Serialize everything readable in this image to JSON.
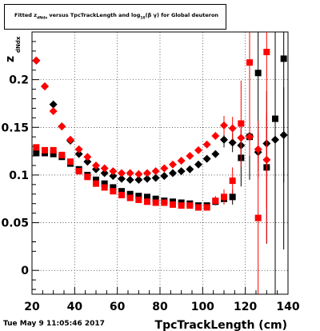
{
  "header": {
    "title": "Fitted  z_dNdx versus TpcTrackLength and log_10(β γ) for Global deuteron",
    "title_parts": {
      "pre": "Fitted  z",
      "sub1": "dNdx",
      "mid": " versus TpcTrackLength and log",
      "sub2": "10",
      "post": "(β γ) for Global deuteron"
    }
  },
  "timestamp": "Tue May  9 11:05:46 2017",
  "chart_data": {
    "type": "scatter",
    "xlabel": "TpcTrackLength (cm)",
    "ylabel": "z",
    "ylabel_sub": "dNdx",
    "xlim": [
      20,
      140
    ],
    "ylim": [
      -0.025,
      0.25
    ],
    "xticks": [
      20,
      40,
      60,
      80,
      100,
      120,
      140
    ],
    "xtick_labels": [
      "20",
      "40",
      "60",
      "80",
      "100",
      "120",
      "140"
    ],
    "yticks": [
      0,
      0.05,
      0.1,
      0.15,
      0.2
    ],
    "ytick_labels": [
      "0",
      "0.05",
      "0.1",
      "0.15",
      "0.2"
    ],
    "grid": true,
    "colors": {
      "black": "#000000",
      "red": "#ff0000"
    },
    "series": [
      {
        "color": "#000000",
        "marker": "square",
        "points": [
          {
            "x": 22,
            "y": 0.123
          },
          {
            "x": 26,
            "y": 0.123
          },
          {
            "x": 30,
            "y": 0.122
          },
          {
            "x": 34,
            "y": 0.119
          },
          {
            "x": 38,
            "y": 0.112
          },
          {
            "x": 42,
            "y": 0.106
          },
          {
            "x": 46,
            "y": 0.1
          },
          {
            "x": 50,
            "y": 0.095
          },
          {
            "x": 54,
            "y": 0.091
          },
          {
            "x": 58,
            "y": 0.087
          },
          {
            "x": 62,
            "y": 0.083
          },
          {
            "x": 66,
            "y": 0.08
          },
          {
            "x": 70,
            "y": 0.078
          },
          {
            "x": 74,
            "y": 0.077
          },
          {
            "x": 78,
            "y": 0.075
          },
          {
            "x": 82,
            "y": 0.073
          },
          {
            "x": 86,
            "y": 0.072
          },
          {
            "x": 90,
            "y": 0.071
          },
          {
            "x": 94,
            "y": 0.07
          },
          {
            "x": 98,
            "y": 0.068
          },
          {
            "x": 102,
            "y": 0.068
          },
          {
            "x": 106,
            "y": 0.072
          },
          {
            "x": 110,
            "y": 0.075,
            "err": 0.006
          },
          {
            "x": 114,
            "y": 0.077,
            "err": 0.008
          },
          {
            "x": 118,
            "y": 0.118,
            "err": 0.03
          },
          {
            "x": 122,
            "y": 0.14,
            "err": 0.045
          },
          {
            "x": 126,
            "y": 0.207,
            "err": 0.07
          },
          {
            "x": 130,
            "y": 0.108,
            "err": 0.08
          },
          {
            "x": 134,
            "y": 0.159,
            "err": 0.2
          },
          {
            "x": 138,
            "y": 0.222,
            "err": 0.2
          }
        ]
      },
      {
        "color": "#000000",
        "marker": "diamond",
        "points": [
          {
            "x": 22,
            "y": 0.22
          },
          {
            "x": 26,
            "y": 0.193
          },
          {
            "x": 30,
            "y": 0.174
          },
          {
            "x": 34,
            "y": 0.151
          },
          {
            "x": 38,
            "y": 0.136
          },
          {
            "x": 42,
            "y": 0.122
          },
          {
            "x": 46,
            "y": 0.114
          },
          {
            "x": 50,
            "y": 0.106
          },
          {
            "x": 54,
            "y": 0.102
          },
          {
            "x": 58,
            "y": 0.099
          },
          {
            "x": 62,
            "y": 0.096
          },
          {
            "x": 66,
            "y": 0.095
          },
          {
            "x": 70,
            "y": 0.095
          },
          {
            "x": 74,
            "y": 0.096
          },
          {
            "x": 78,
            "y": 0.097
          },
          {
            "x": 82,
            "y": 0.099
          },
          {
            "x": 86,
            "y": 0.102
          },
          {
            "x": 90,
            "y": 0.104
          },
          {
            "x": 94,
            "y": 0.106
          },
          {
            "x": 98,
            "y": 0.111
          },
          {
            "x": 102,
            "y": 0.117
          },
          {
            "x": 106,
            "y": 0.122
          },
          {
            "x": 110,
            "y": 0.137,
            "err": 0.008
          },
          {
            "x": 114,
            "y": 0.134,
            "err": 0.01
          },
          {
            "x": 118,
            "y": 0.131,
            "err": 0.012
          },
          {
            "x": 122,
            "y": 0.141,
            "err": 0.015
          },
          {
            "x": 126,
            "y": 0.124,
            "err": 0.02
          },
          {
            "x": 130,
            "y": 0.133,
            "err": 0.03
          },
          {
            "x": 134,
            "y": 0.137,
            "err": 0.04
          },
          {
            "x": 138,
            "y": 0.142,
            "err": 0.05
          }
        ]
      },
      {
        "color": "#ff0000",
        "marker": "square",
        "points": [
          {
            "x": 22,
            "y": 0.129
          },
          {
            "x": 26,
            "y": 0.126
          },
          {
            "x": 30,
            "y": 0.126
          },
          {
            "x": 34,
            "y": 0.121
          },
          {
            "x": 38,
            "y": 0.114
          },
          {
            "x": 42,
            "y": 0.104
          },
          {
            "x": 46,
            "y": 0.098
          },
          {
            "x": 50,
            "y": 0.091
          },
          {
            "x": 54,
            "y": 0.087
          },
          {
            "x": 58,
            "y": 0.083
          },
          {
            "x": 62,
            "y": 0.079
          },
          {
            "x": 66,
            "y": 0.076
          },
          {
            "x": 70,
            "y": 0.074
          },
          {
            "x": 74,
            "y": 0.072
          },
          {
            "x": 78,
            "y": 0.071
          },
          {
            "x": 82,
            "y": 0.071
          },
          {
            "x": 86,
            "y": 0.069
          },
          {
            "x": 90,
            "y": 0.068
          },
          {
            "x": 94,
            "y": 0.068
          },
          {
            "x": 98,
            "y": 0.066
          },
          {
            "x": 102,
            "y": 0.066
          },
          {
            "x": 106,
            "y": 0.073,
            "err": 0.005
          },
          {
            "x": 110,
            "y": 0.077,
            "err": 0.008
          },
          {
            "x": 114,
            "y": 0.094,
            "err": 0.014
          },
          {
            "x": 118,
            "y": 0.154,
            "err": 0.045
          },
          {
            "x": 122,
            "y": 0.218,
            "err": 0.06
          },
          {
            "x": 126,
            "y": 0.055,
            "err": 0.09
          },
          {
            "x": 130,
            "y": 0.229,
            "err": 0.2
          }
        ]
      },
      {
        "color": "#ff0000",
        "marker": "diamond",
        "points": [
          {
            "x": 22,
            "y": 0.22
          },
          {
            "x": 26,
            "y": 0.193
          },
          {
            "x": 30,
            "y": 0.167
          },
          {
            "x": 34,
            "y": 0.151
          },
          {
            "x": 38,
            "y": 0.137
          },
          {
            "x": 42,
            "y": 0.127
          },
          {
            "x": 46,
            "y": 0.119
          },
          {
            "x": 50,
            "y": 0.11
          },
          {
            "x": 54,
            "y": 0.107
          },
          {
            "x": 58,
            "y": 0.104
          },
          {
            "x": 62,
            "y": 0.102
          },
          {
            "x": 66,
            "y": 0.102
          },
          {
            "x": 70,
            "y": 0.101
          },
          {
            "x": 74,
            "y": 0.102
          },
          {
            "x": 78,
            "y": 0.104
          },
          {
            "x": 82,
            "y": 0.107
          },
          {
            "x": 86,
            "y": 0.111
          },
          {
            "x": 90,
            "y": 0.115
          },
          {
            "x": 94,
            "y": 0.12
          },
          {
            "x": 98,
            "y": 0.126
          },
          {
            "x": 102,
            "y": 0.132
          },
          {
            "x": 106,
            "y": 0.141
          },
          {
            "x": 110,
            "y": 0.152,
            "err": 0.01
          },
          {
            "x": 114,
            "y": 0.149,
            "err": 0.012
          },
          {
            "x": 118,
            "y": 0.139,
            "err": 0.016
          },
          {
            "x": 122,
            "y": 0.14,
            "err": 0.02
          },
          {
            "x": 126,
            "y": 0.127,
            "err": 0.03
          },
          {
            "x": 130,
            "y": 0.116,
            "err": 0.05
          }
        ]
      }
    ]
  }
}
